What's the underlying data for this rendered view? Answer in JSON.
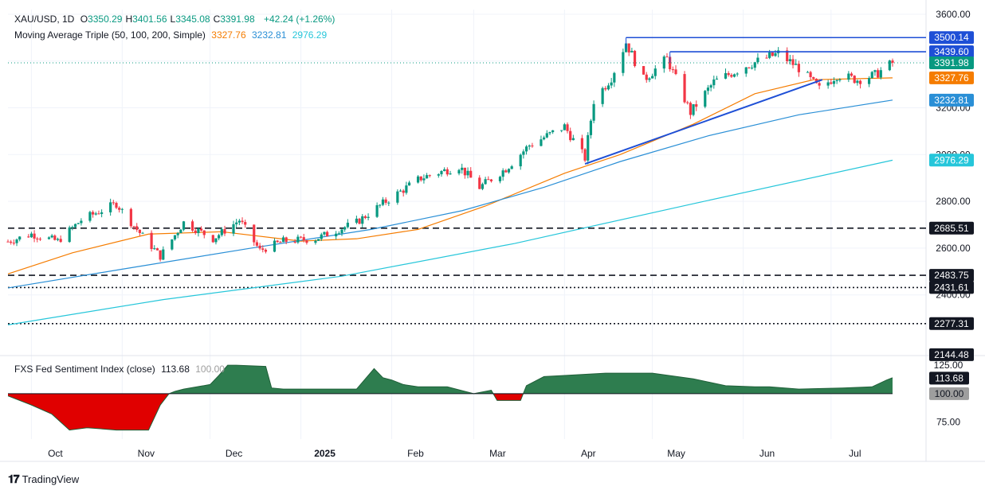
{
  "header": {
    "symbol": "XAU/USD, 1D",
    "ohlc": [
      {
        "k": "O",
        "v": "3350.29"
      },
      {
        "k": "H",
        "v": "3401.56"
      },
      {
        "k": "L",
        "v": "3345.08"
      },
      {
        "k": "C",
        "v": "3391.98"
      }
    ],
    "change": "+42.24 (+1.26%)",
    "ma_title": "Moving Average Triple (50, 100, 200, Simple)",
    "ma_values": [
      "3327.76",
      "3232.81",
      "2976.29"
    ],
    "sub_title": "FXS Fed Sentiment Index (close)",
    "sub_value": "113.68",
    "sub_baseline": "100.00"
  },
  "brand": "TradingView",
  "colors": {
    "up": "#089981",
    "down": "#f23645",
    "ma50": "#f57c00",
    "ma100": "#2a8fd6",
    "ma200": "#26c6da",
    "resistance": "#1e4fd6",
    "axis_text": "#131722",
    "sentiment_pos": "#2e7d4f",
    "sentiment_neg": "#e00000"
  },
  "chart_data": [
    {
      "type": "line",
      "title": "XAU/USD, 1D",
      "ylim": [
        2144,
        3620
      ],
      "y_ticks": [
        "3600.00",
        "3400.00",
        "3200.00",
        "3000.00",
        "2800.00",
        "2600.00",
        "2400.00"
      ],
      "x_ticks": [
        "Oct",
        "Nov",
        "Dec",
        "2025",
        "Feb",
        "Mar",
        "Apr",
        "May",
        "Jun",
        "Jul"
      ],
      "x_tick_dates": [
        "2024-10-01",
        "2024-11-01",
        "2024-12-01",
        "2025-01-01",
        "2025-02-01",
        "2025-03-01",
        "2025-04-01",
        "2025-05-01",
        "2025-06-01",
        "2025-07-01"
      ],
      "x_range": [
        "2024-09-23",
        "2025-07-22"
      ],
      "close_series": {
        "name": "XAU/USD",
        "x": [
          "2024-09-23",
          "2024-10-01",
          "2024-10-10",
          "2024-10-18",
          "2024-10-23",
          "2024-10-30",
          "2024-11-06",
          "2024-11-14",
          "2024-11-22",
          "2024-12-02",
          "2024-12-11",
          "2024-12-18",
          "2024-12-26",
          "2025-01-06",
          "2025-01-20",
          "2025-01-30",
          "2025-02-11",
          "2025-02-24",
          "2025-03-03",
          "2025-03-12",
          "2025-03-20",
          "2025-04-01",
          "2025-04-08",
          "2025-04-11",
          "2025-04-17",
          "2025-04-22",
          "2025-04-28",
          "2025-05-06",
          "2025-05-14",
          "2025-05-22",
          "2025-06-02",
          "2025-06-13",
          "2025-06-20",
          "2025-06-27",
          "2025-07-03",
          "2025-07-10",
          "2025-07-16",
          "2025-07-22"
        ],
        "values": [
          2628,
          2660,
          2630,
          2720,
          2750,
          2790,
          2680,
          2565,
          2710,
          2640,
          2720,
          2590,
          2630,
          2640,
          2710,
          2800,
          2900,
          2950,
          2860,
          2940,
          3040,
          3120,
          2985,
          3230,
          3330,
          3480,
          3320,
          3410,
          3180,
          3310,
          3380,
          3432,
          3370,
          3280,
          3340,
          3320,
          3340,
          3392
        ]
      },
      "series": [
        {
          "name": "50",
          "x": [
            "2024-09-23",
            "2024-10-15",
            "2024-11-10",
            "2024-12-05",
            "2025-01-01",
            "2025-01-20",
            "2025-02-10",
            "2025-03-05",
            "2025-04-01",
            "2025-04-20",
            "2025-05-15",
            "2025-06-05",
            "2025-06-25",
            "2025-07-22"
          ],
          "values": [
            2490,
            2580,
            2660,
            2670,
            2630,
            2640,
            2680,
            2780,
            2920,
            3000,
            3130,
            3260,
            3320,
            3328
          ]
        },
        {
          "name": "100",
          "x": [
            "2024-09-23",
            "2024-11-01",
            "2024-12-15",
            "2025-01-25",
            "2025-02-25",
            "2025-03-25",
            "2025-04-20",
            "2025-05-20",
            "2025-06-20",
            "2025-07-22"
          ],
          "values": [
            2430,
            2510,
            2600,
            2680,
            2760,
            2860,
            2970,
            3080,
            3170,
            3233
          ]
        },
        {
          "name": "200",
          "x": [
            "2024-09-23",
            "2024-11-15",
            "2025-01-15",
            "2025-03-15",
            "2025-05-15",
            "2025-07-22"
          ],
          "values": [
            2272,
            2380,
            2480,
            2620,
            2790,
            2976
          ]
        }
      ],
      "h_lines": [
        {
          "value": 2685.51,
          "style": "dashed",
          "label": "2685.51"
        },
        {
          "value": 2483.75,
          "style": "dashed",
          "label": "2483.75"
        },
        {
          "value": 2431.61,
          "style": "dotted",
          "label": "2431.61"
        },
        {
          "value": 2277.31,
          "style": "dotted",
          "label": "2277.31"
        }
      ],
      "price_labels": [
        {
          "value": 3500.14,
          "label": "3500.14",
          "color": "#1e4fd6"
        },
        {
          "value": 3439.6,
          "label": "3439.60",
          "color": "#1e4fd6"
        },
        {
          "value": 3391.98,
          "label": "3391.98",
          "color": "#089981"
        },
        {
          "value": 3327.76,
          "label": "3327.76",
          "color": "#f57c00"
        },
        {
          "value": 3232.81,
          "label": "3232.81",
          "color": "#2a8fd6"
        },
        {
          "value": 2976.29,
          "label": "2976.29",
          "color": "#26c6da"
        },
        {
          "value": 2144.48,
          "label": "2144.48",
          "color": "#131722"
        }
      ],
      "resistance_lines": [
        {
          "from": "2025-04-22",
          "to": "2025-07-22",
          "value": 3500.14
        },
        {
          "from": "2025-05-07",
          "to": "2025-07-22",
          "value": 3439.6
        }
      ],
      "support_line": {
        "x": [
          "2025-04-08",
          "2025-06-28"
        ],
        "values": [
          2960,
          3320
        ]
      }
    },
    {
      "type": "area",
      "title": "FXS Fed Sentiment Index (close)",
      "baseline": 100,
      "ylim": [
        60,
        130
      ],
      "y_ticks": [
        "125.00",
        "75.00"
      ],
      "price_labels": [
        {
          "value": 113.68,
          "label": "113.68"
        },
        {
          "value": 100,
          "label": "100.00"
        }
      ],
      "x": [
        "2024-09-23",
        "2024-10-01",
        "2024-10-08",
        "2024-10-14",
        "2024-10-20",
        "2024-10-30",
        "2024-11-10",
        "2024-11-14",
        "2024-11-17",
        "2024-11-19",
        "2024-11-22",
        "2024-12-01",
        "2024-12-04",
        "2024-12-07",
        "2024-12-10",
        "2024-12-20",
        "2024-12-22",
        "2024-12-26",
        "2025-01-20",
        "2025-01-26",
        "2025-01-29",
        "2025-02-01",
        "2025-02-05",
        "2025-02-10",
        "2025-02-20",
        "2025-03-01",
        "2025-03-07",
        "2025-03-09",
        "2025-03-17",
        "2025-03-19",
        "2025-03-25",
        "2025-04-01",
        "2025-04-15",
        "2025-05-01",
        "2025-05-15",
        "2025-05-26",
        "2025-06-05",
        "2025-06-10",
        "2025-06-20",
        "2025-07-05",
        "2025-07-15",
        "2025-07-20",
        "2025-07-22"
      ],
      "values": [
        98,
        90,
        82,
        68,
        70,
        68,
        68,
        90,
        100,
        102,
        104,
        108,
        116,
        125,
        125,
        124,
        105,
        104,
        104,
        122,
        114,
        112,
        108,
        106,
        106,
        100,
        103,
        94,
        94,
        107,
        115,
        116,
        118,
        118,
        113,
        107,
        106,
        106,
        104,
        105,
        106,
        112,
        114
      ]
    }
  ]
}
